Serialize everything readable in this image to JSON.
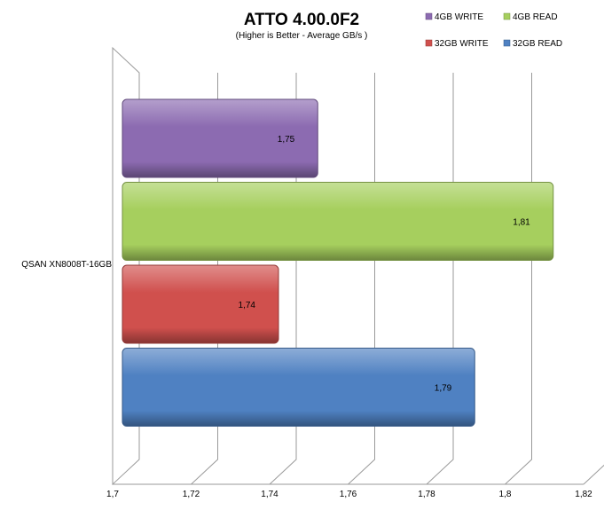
{
  "chart_data": {
    "type": "bar",
    "orientation": "horizontal",
    "title": "ATTO 4.00.0F2",
    "subtitle": "(Higher is Better - Average GB/s )",
    "categories": [
      "QSAN XN8008T-16GB"
    ],
    "series": [
      {
        "name": "4GB WRITE",
        "values": [
          1.75
        ],
        "label": "1,75",
        "color": "#8c6bb1"
      },
      {
        "name": "4GB READ",
        "values": [
          1.81
        ],
        "label": "1,81",
        "color": "#a6cf5e"
      },
      {
        "name": "32GB WRITE",
        "values": [
          1.74
        ],
        "label": "1,74",
        "color": "#d0504d"
      },
      {
        "name": "32GB READ",
        "values": [
          1.79
        ],
        "label": "1,79",
        "color": "#4f81c2"
      }
    ],
    "xlim": [
      1.7,
      1.82
    ],
    "x_ticks": [
      1.7,
      1.72,
      1.74,
      1.76,
      1.78,
      1.8,
      1.82
    ],
    "x_tick_labels": [
      "1,7",
      "1,72",
      "1,74",
      "1,76",
      "1,78",
      "1,8",
      "1,82"
    ],
    "grid": true,
    "legend_position": "top-right"
  }
}
